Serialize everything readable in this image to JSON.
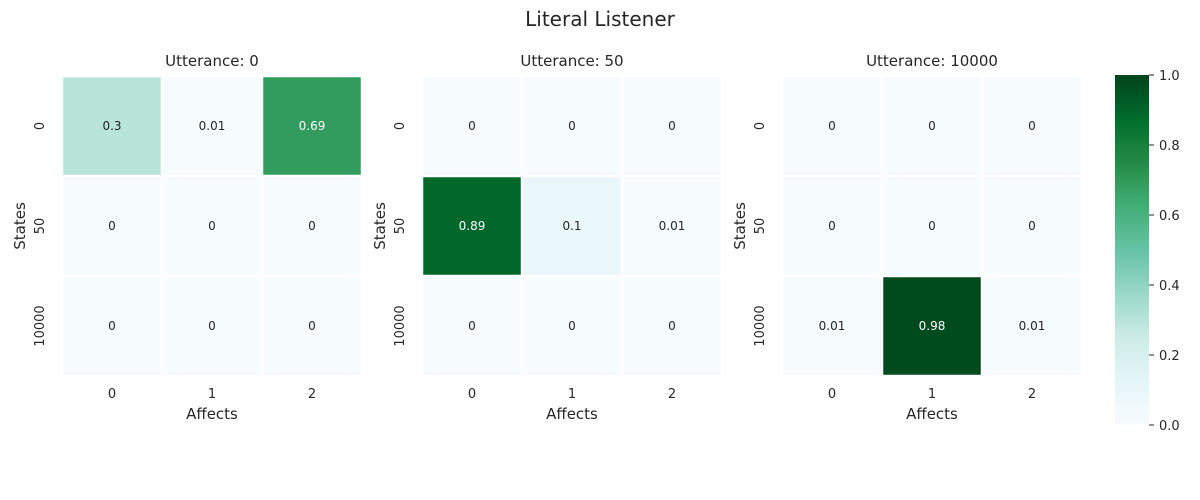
{
  "chart_data": {
    "type": "heatmap",
    "title": "Literal Listener",
    "colormap": [
      "#f7fcfd",
      "#e5f5f9",
      "#ccece6",
      "#99d8c9",
      "#66c2a4",
      "#41ae76",
      "#238b45",
      "#006d2c",
      "#00441b"
    ],
    "vlim": [
      0,
      1
    ],
    "colorbar_ticks": [
      "0.0",
      "0.2",
      "0.4",
      "0.6",
      "0.8",
      "1.0"
    ],
    "colorbar_tick_values": [
      0,
      0.2,
      0.4,
      0.6,
      0.8,
      1.0
    ],
    "xlabel": "Affects",
    "ylabel": "States",
    "x_ticks": [
      "0",
      "1",
      "2"
    ],
    "y_ticks": [
      "0",
      "50",
      "10000"
    ],
    "panels": [
      {
        "title": "Utterance: 0",
        "values": [
          [
            0.3,
            0.01,
            0.69
          ],
          [
            0,
            0,
            0
          ],
          [
            0,
            0,
            0
          ]
        ],
        "labels": [
          [
            "0.3",
            "0.01",
            "0.69"
          ],
          [
            "0",
            "0",
            "0"
          ],
          [
            "0",
            "0",
            "0"
          ]
        ]
      },
      {
        "title": "Utterance: 50",
        "values": [
          [
            0,
            0,
            0
          ],
          [
            0.89,
            0.1,
            0.01
          ],
          [
            0,
            0,
            0
          ]
        ],
        "labels": [
          [
            "0",
            "0",
            "0"
          ],
          [
            "0.89",
            "0.1",
            "0.01"
          ],
          [
            "0",
            "0",
            "0"
          ]
        ]
      },
      {
        "title": "Utterance: 10000",
        "values": [
          [
            0,
            0,
            0
          ],
          [
            0,
            0,
            0
          ],
          [
            0.01,
            0.98,
            0.01
          ]
        ],
        "labels": [
          [
            "0",
            "0",
            "0"
          ],
          [
            "0",
            "0",
            "0"
          ],
          [
            "0.01",
            "0.98",
            "0.01"
          ]
        ]
      }
    ]
  }
}
